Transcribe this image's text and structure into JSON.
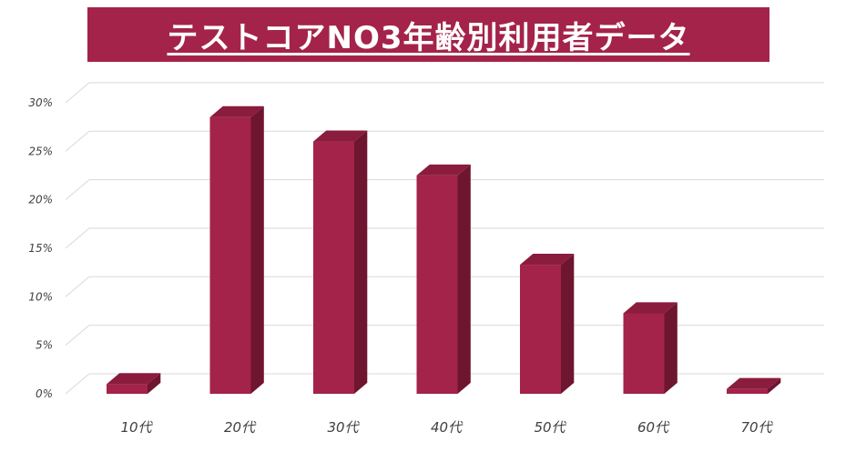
{
  "title": "テストコアNO3年齢別利用者データ",
  "colors": {
    "bar_front": "#a4234a",
    "bar_side": "#6e1530",
    "bar_top": "#8a1c3d",
    "gridline": "#d9d9d9",
    "axis_text": "#404040"
  },
  "chart_data": {
    "type": "bar",
    "title": "テストコアNO3年齢別利用者データ",
    "categories": [
      "10代",
      "20代",
      "30代",
      "40代",
      "50代",
      "60代",
      "70代"
    ],
    "values": [
      1,
      28.5,
      26,
      22.5,
      13.3,
      8.3,
      0.5
    ],
    "ylim": [
      0,
      30
    ],
    "yticks": [
      0,
      5,
      10,
      15,
      20,
      25,
      30
    ],
    "ytick_labels": [
      "0%",
      "5%",
      "10%",
      "15%",
      "20%",
      "25%",
      "30%"
    ],
    "xlabel": "",
    "ylabel": "",
    "grid": true,
    "legend": "none",
    "style": "3d-column"
  }
}
